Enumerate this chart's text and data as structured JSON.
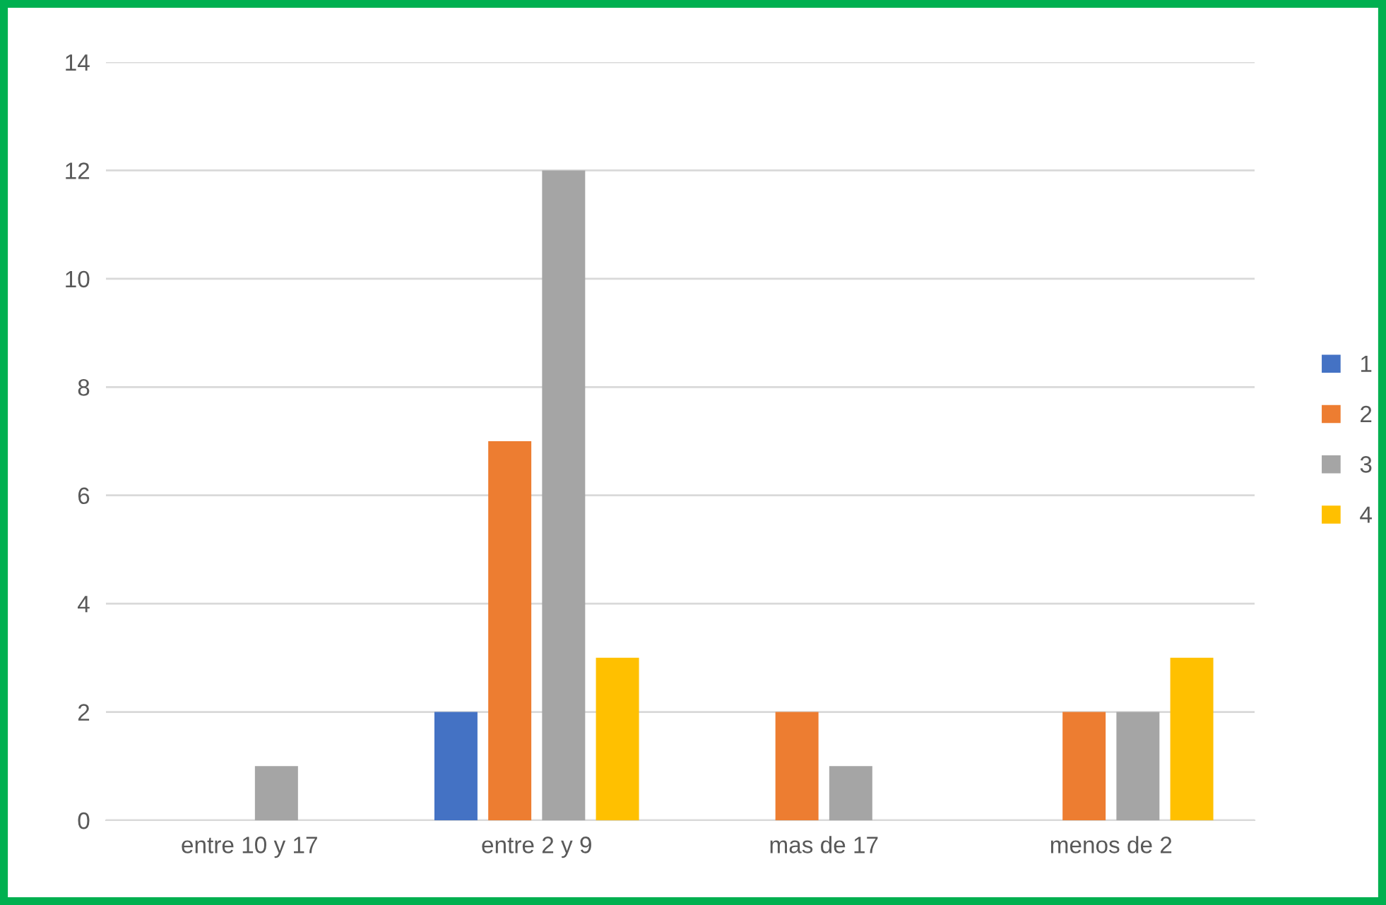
{
  "chart_data": {
    "type": "bar",
    "categories": [
      "entre 10 y 17",
      "entre 2 y 9",
      "mas de 17",
      "menos de 2"
    ],
    "series": [
      {
        "name": "1",
        "color": "#4472c4",
        "values": [
          0,
          2,
          0,
          0
        ]
      },
      {
        "name": "2",
        "color": "#ed7d31",
        "values": [
          0,
          7,
          2,
          2
        ]
      },
      {
        "name": "3",
        "color": "#a5a5a5",
        "values": [
          1,
          12,
          1,
          2
        ]
      },
      {
        "name": "4",
        "color": "#ffc000",
        "values": [
          0,
          3,
          0,
          3
        ]
      }
    ],
    "ylim": [
      0,
      14
    ],
    "yticks": [
      0,
      2,
      4,
      6,
      8,
      10,
      12,
      14
    ],
    "grid": "y",
    "legend": "right"
  }
}
